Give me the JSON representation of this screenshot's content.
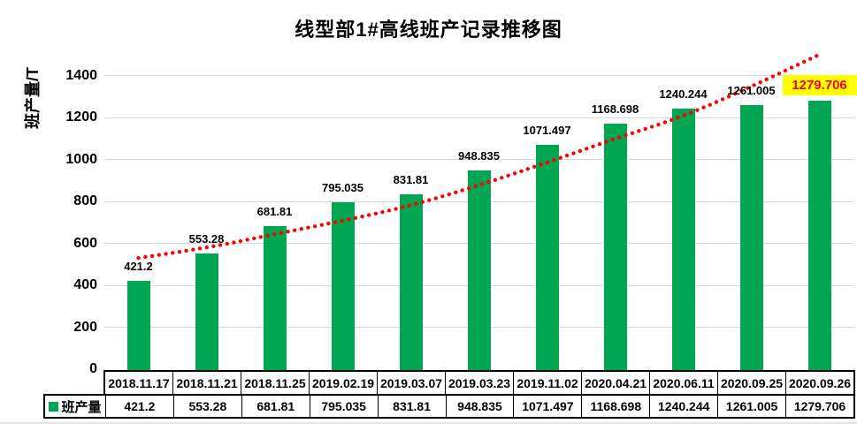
{
  "chart_data": {
    "type": "bar",
    "title": "线型部1#高线班产记录推移图",
    "ylabel": "班产量/T",
    "ylim": [
      0,
      1500
    ],
    "yticks": [
      0,
      200,
      400,
      600,
      800,
      1000,
      1200,
      1400
    ],
    "grid": true,
    "legend": {
      "label": "班产量",
      "position": "data-table-left"
    },
    "categories": [
      "2018.11.17",
      "2018.11.21",
      "2018.11.25",
      "2019.02.19",
      "2019.03.07",
      "2019.03.23",
      "2019.11.02",
      "2020.04.21",
      "2020.06.11",
      "2020.09.25",
      "2020.09.26"
    ],
    "series": [
      {
        "name": "班产量",
        "color": "#00A651",
        "values": [
          421.2,
          553.28,
          681.81,
          795.035,
          831.81,
          948.835,
          1071.497,
          1168.698,
          1240.244,
          1261.005,
          1279.706
        ],
        "labels": [
          "421.2",
          "553.28",
          "681.81",
          "795.035",
          "831.81",
          "948.835",
          "1071.497",
          "1168.698",
          "1240.244",
          "1261.005",
          "1279.706"
        ]
      }
    ],
    "trendline": {
      "style": "dotted",
      "color": "#FF0000",
      "values": [
        530,
        577,
        644,
        707,
        779,
        876,
        985,
        1099,
        1204,
        1347,
        1500
      ]
    },
    "highlight_last_label": {
      "background": "#FFFF00",
      "color": "#FF0000"
    },
    "colors": {
      "gridline": "#D9D9D9",
      "axis_text": "#000000",
      "table_border": "#000000"
    },
    "data_table_shown": true
  }
}
